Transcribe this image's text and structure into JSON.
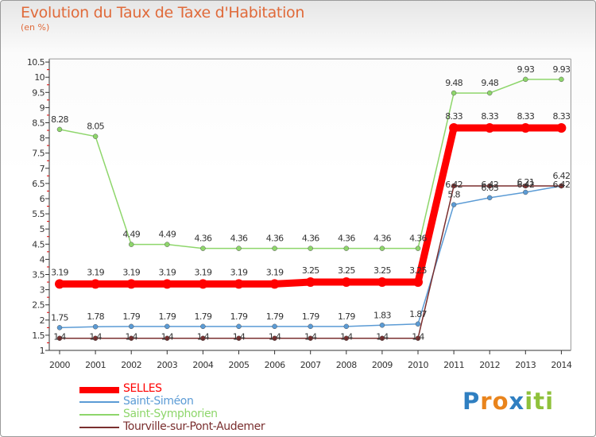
{
  "chart_data": {
    "type": "line",
    "title": "Evolution du Taux de Taxe d'Habitation",
    "unit": "(en %)",
    "x": [
      "2000",
      "2001",
      "2002",
      "2003",
      "2004",
      "2005",
      "2006",
      "2007",
      "2008",
      "2009",
      "2010",
      "2011",
      "2012",
      "2013",
      "2014"
    ],
    "ylim": [
      1,
      10.5
    ],
    "yticks": [
      "1",
      "1.5",
      "2",
      "2.5",
      "3",
      "3.5",
      "4",
      "4.5",
      "5",
      "5.5",
      "6",
      "6.5",
      "7",
      "7.5",
      "8",
      "8.5",
      "9",
      "9.5",
      "10",
      "10.5"
    ],
    "grid": false,
    "legend_position": "bottom-left",
    "series": [
      {
        "name": "SELLES",
        "color": "#ff0000",
        "values": [
          3.19,
          3.19,
          3.19,
          3.19,
          3.19,
          3.19,
          3.19,
          3.25,
          3.25,
          3.25,
          3.25,
          8.33,
          8.33,
          8.33,
          8.33
        ],
        "labels": [
          "3.19",
          "3.19",
          "3.19",
          "3.19",
          "3.19",
          "3.19",
          "3.19",
          "3.25",
          "3.25",
          "3.25",
          "3.25",
          "8.33",
          "8.33",
          "8.33",
          "8.33"
        ]
      },
      {
        "name": "Saint-Siméon",
        "color": "#5b9bd5",
        "values": [
          1.75,
          1.78,
          1.79,
          1.79,
          1.79,
          1.79,
          1.79,
          1.79,
          1.79,
          1.83,
          1.87,
          5.8,
          6.03,
          6.21,
          6.42
        ],
        "labels": [
          "1.75",
          "1.78",
          "1.79",
          "1.79",
          "1.79",
          "1.79",
          "1.79",
          "1.79",
          "1.79",
          "1.83",
          "1.87",
          "5.8",
          "6.03",
          "6.21",
          "6.42"
        ]
      },
      {
        "name": "Saint-Symphorien",
        "color": "#8ed66b",
        "values": [
          8.28,
          8.05,
          4.49,
          4.49,
          4.36,
          4.36,
          4.36,
          4.36,
          4.36,
          4.36,
          4.36,
          9.48,
          9.48,
          9.93,
          9.93
        ],
        "labels": [
          "8.28",
          "8.05",
          "4.49",
          "4.49",
          "4.36",
          "4.36",
          "4.36",
          "4.36",
          "4.36",
          "4.36",
          "4.36",
          "9.48",
          "9.48",
          "9.93",
          "9.93"
        ]
      },
      {
        "name": "Tourville-sur-Pont-Audemer",
        "color": "#7a2f2f",
        "values": [
          1.4,
          1.4,
          1.4,
          1.4,
          1.4,
          1.4,
          1.4,
          1.4,
          1.4,
          1.4,
          1.4,
          6.42,
          6.42,
          6.42,
          6.42
        ],
        "labels": [
          "1.4",
          "1.4",
          "1.4",
          "1.4",
          "1.4",
          "1.4",
          "1.4",
          "1.4",
          "1.4",
          "1.4",
          "1.4",
          "6.42",
          "6.42",
          "6.42",
          "6.42"
        ]
      }
    ]
  },
  "logo": {
    "letters": [
      "P",
      "r",
      "o",
      "x",
      "i",
      "t",
      "i"
    ],
    "colors": [
      "#2f7fc1",
      "#e9841c",
      "#e9841c",
      "#2f7fc1",
      "#8fc13b",
      "#8fc13b",
      "#8fc13b"
    ]
  }
}
